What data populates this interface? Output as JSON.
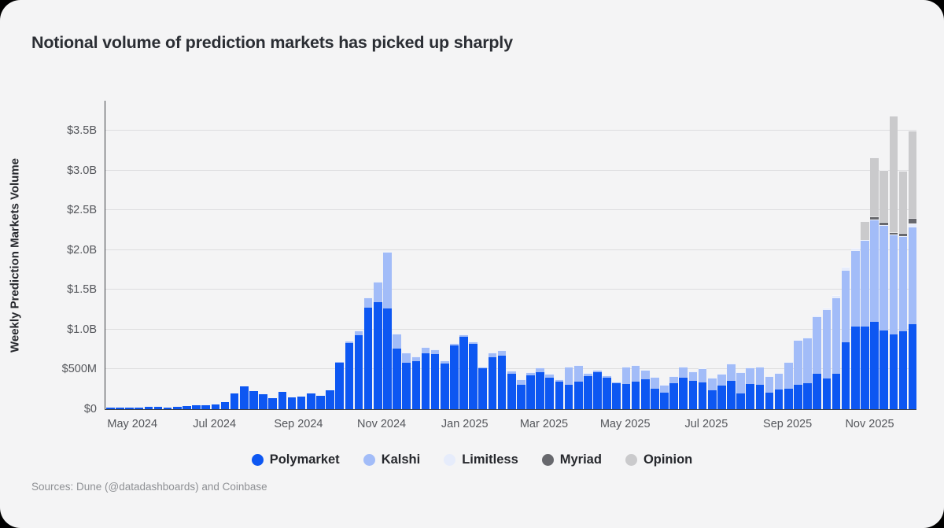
{
  "title": "Notional volume of prediction markets has picked up sharply",
  "source": "Sources: Dune (@datadashboards) and Coinbase",
  "chart_data": {
    "type": "bar",
    "stacked": true,
    "title": "Notional volume of prediction markets has picked up sharply",
    "xlabel": "",
    "ylabel": "Weekly Prediction Markets Volume",
    "value_unit": "millions of USD per week",
    "ylim_musd": [
      0,
      3886
    ],
    "grid": true,
    "legend_position": "bottom",
    "yticks": [
      {
        "label": "$0",
        "value": 0
      },
      {
        "label": "$500M",
        "value": 500
      },
      {
        "label": "$1.0B",
        "value": 1000
      },
      {
        "label": "$1.5B",
        "value": 1500
      },
      {
        "label": "$2.0B",
        "value": 2000
      },
      {
        "label": "$2.5B",
        "value": 2500
      },
      {
        "label": "$3.0B",
        "value": 3000
      },
      {
        "label": "$3.5B",
        "value": 3500
      }
    ],
    "xticks": [
      {
        "label": "May 2024",
        "week": 3.4
      },
      {
        "label": "Jul 2024",
        "week": 12.0
      },
      {
        "label": "Sep 2024",
        "week": 20.8
      },
      {
        "label": "Nov 2024",
        "week": 29.5
      },
      {
        "label": "Jan 2025",
        "week": 38.2
      },
      {
        "label": "Mar 2025",
        "week": 46.5
      },
      {
        "label": "May 2025",
        "week": 55.0
      },
      {
        "label": "Jul 2025",
        "week": 63.5
      },
      {
        "label": "Sep 2025",
        "week": 72.0
      },
      {
        "label": "Nov 2025",
        "week": 80.6
      }
    ],
    "series": [
      {
        "name": "Polymarket",
        "color": "#0d57f2"
      },
      {
        "name": "Kalshi",
        "color": "#a2bcf8"
      },
      {
        "name": "Limitless",
        "color": "#e6ecfb"
      },
      {
        "name": "Myriad",
        "color": "#67686d"
      },
      {
        "name": "Opinion",
        "color": "#cacacc"
      }
    ],
    "weeks_musd": [
      [
        20,
        0,
        0,
        0,
        0
      ],
      [
        18,
        0,
        0,
        0,
        0
      ],
      [
        22,
        0,
        0,
        0,
        0
      ],
      [
        18,
        0,
        0,
        0,
        0
      ],
      [
        28,
        0,
        0,
        0,
        0
      ],
      [
        25,
        0,
        0,
        0,
        0
      ],
      [
        20,
        0,
        0,
        0,
        0
      ],
      [
        32,
        0,
        0,
        0,
        0
      ],
      [
        40,
        0,
        0,
        0,
        0
      ],
      [
        50,
        0,
        0,
        0,
        0
      ],
      [
        52,
        0,
        0,
        0,
        0
      ],
      [
        60,
        0,
        0,
        0,
        0
      ],
      [
        90,
        0,
        0,
        0,
        0
      ],
      [
        200,
        0,
        0,
        0,
        0
      ],
      [
        290,
        0,
        0,
        0,
        0
      ],
      [
        225,
        0,
        0,
        0,
        0
      ],
      [
        190,
        0,
        0,
        0,
        0
      ],
      [
        135,
        0,
        0,
        0,
        0
      ],
      [
        215,
        0,
        0,
        0,
        0
      ],
      [
        150,
        0,
        0,
        0,
        0
      ],
      [
        160,
        0,
        0,
        0,
        0
      ],
      [
        200,
        0,
        0,
        0,
        0
      ],
      [
        170,
        0,
        0,
        0,
        0
      ],
      [
        240,
        0,
        0,
        0,
        0
      ],
      [
        580,
        10,
        0,
        0,
        0
      ],
      [
        830,
        30,
        0,
        0,
        0
      ],
      [
        930,
        60,
        0,
        0,
        0
      ],
      [
        1280,
        120,
        0,
        0,
        0
      ],
      [
        1340,
        260,
        0,
        0,
        0
      ],
      [
        1270,
        710,
        0,
        0,
        0
      ],
      [
        760,
        190,
        0,
        0,
        0
      ],
      [
        580,
        130,
        0,
        0,
        0
      ],
      [
        600,
        60,
        0,
        0,
        0
      ],
      [
        700,
        85,
        0,
        0,
        0
      ],
      [
        690,
        65,
        0,
        0,
        0
      ],
      [
        575,
        35,
        0,
        0,
        0
      ],
      [
        800,
        35,
        0,
        0,
        0
      ],
      [
        905,
        35,
        0,
        0,
        0
      ],
      [
        825,
        25,
        0,
        0,
        0
      ],
      [
        510,
        25,
        0,
        0,
        0
      ],
      [
        650,
        65,
        0,
        0,
        0
      ],
      [
        670,
        70,
        0,
        0,
        0
      ],
      [
        445,
        35,
        0,
        0,
        0
      ],
      [
        305,
        75,
        0,
        0,
        0
      ],
      [
        423,
        45,
        0,
        0,
        0
      ],
      [
        462,
        58,
        0,
        0,
        0
      ],
      [
        397,
        48,
        0,
        0,
        0
      ],
      [
        348,
        25,
        0,
        0,
        0
      ],
      [
        305,
        230,
        0,
        0,
        0
      ],
      [
        348,
        205,
        0,
        0,
        0
      ],
      [
        417,
        35,
        0,
        0,
        0
      ],
      [
        465,
        28,
        0,
        0,
        0
      ],
      [
        397,
        27,
        0,
        0,
        0
      ],
      [
        322,
        27,
        0,
        0,
        0
      ],
      [
        315,
        220,
        0,
        0,
        0
      ],
      [
        349,
        205,
        0,
        0,
        0
      ],
      [
        373,
        120,
        0,
        0,
        0
      ],
      [
        253,
        155,
        0,
        0,
        0
      ],
      [
        209,
        95,
        0,
        0,
        0
      ],
      [
        329,
        88,
        0,
        0,
        0
      ],
      [
        397,
        137,
        0,
        0,
        0
      ],
      [
        356,
        119,
        0,
        0,
        0
      ],
      [
        339,
        171,
        0,
        0,
        0
      ],
      [
        236,
        161,
        0,
        0,
        0
      ],
      [
        294,
        147,
        0,
        0,
        0
      ],
      [
        356,
        222,
        0,
        0,
        0
      ],
      [
        202,
        263,
        0,
        0,
        0
      ],
      [
        315,
        212,
        0,
        0,
        0
      ],
      [
        310,
        225,
        0,
        0,
        0
      ],
      [
        211,
        204,
        0,
        0,
        0
      ],
      [
        246,
        205,
        0,
        0,
        0
      ],
      [
        253,
        338,
        0,
        0,
        0
      ],
      [
        303,
        566,
        0,
        0,
        0
      ],
      [
        329,
        572,
        0,
        0,
        0
      ],
      [
        441,
        723,
        20,
        0,
        0
      ],
      [
        385,
        868,
        20,
        0,
        0
      ],
      [
        441,
        964,
        25,
        0,
        0
      ],
      [
        836,
        914,
        40,
        0,
        0
      ],
      [
        1043,
        954,
        35,
        0,
        0
      ],
      [
        1043,
        1086,
        0,
        0,
        230
      ],
      [
        1099,
        1283,
        0,
        45,
        735
      ],
      [
        987,
        1329,
        0,
        35,
        660
      ],
      [
        944,
        1250,
        0,
        35,
        1460
      ],
      [
        977,
        1194,
        0,
        40,
        785
      ],
      [
        1066,
        1227,
        45,
        70,
        1090
      ]
    ]
  },
  "legend": {
    "items": [
      {
        "label": "Polymarket",
        "color": "#0d57f2"
      },
      {
        "label": "Kalshi",
        "color": "#a2bcf8"
      },
      {
        "label": "Limitless",
        "color": "#e6ecfb"
      },
      {
        "label": "Myriad",
        "color": "#67686d"
      },
      {
        "label": "Opinion",
        "color": "#cacacc"
      }
    ]
  }
}
